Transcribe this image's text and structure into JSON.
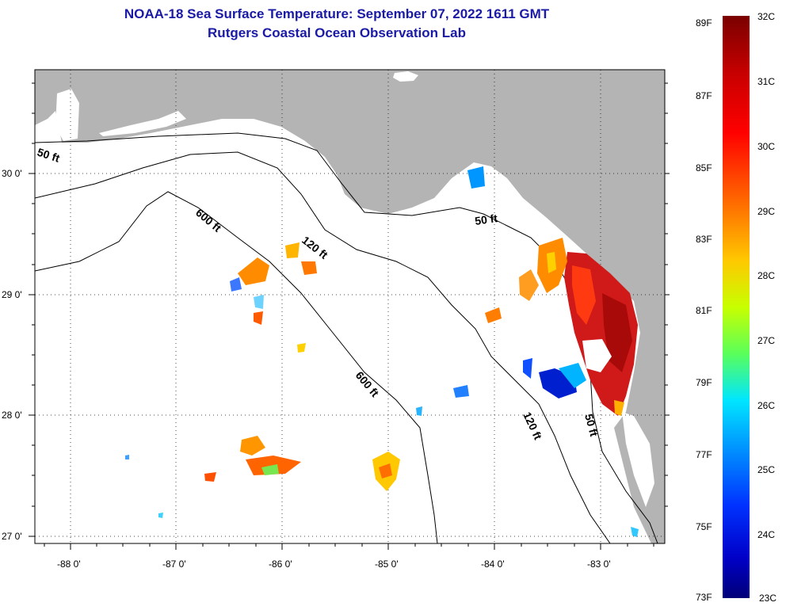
{
  "header": {
    "title": "NOAA-18 Sea Surface Temperature:  September 07, 2022 1611 GMT",
    "subtitle": "Rutgers Coastal Ocean Observation Lab"
  },
  "map": {
    "lon_labels": [
      "-88 0'",
      "-87 0'",
      "-86 0'",
      "-85 0'",
      "-84 0'",
      "-83 0'"
    ],
    "lat_labels": [
      "30 0'",
      "29 0'",
      "28 0'",
      "27 0'"
    ],
    "contour_labels": [
      "50 ft",
      "600 ft",
      "120 ft",
      "50 ft",
      "600 ft",
      "120 ft",
      "50 ft"
    ],
    "colors": {
      "land": "#b4b4b4",
      "water": "#ffffff"
    }
  },
  "legend": {
    "fahrenheit": [
      "89F",
      "87F",
      "85F",
      "83F",
      "81F",
      "79F",
      "77F",
      "75F",
      "73F"
    ],
    "celsius": [
      "32C",
      "31C",
      "30C",
      "29C",
      "28C",
      "27C",
      "26C",
      "25C",
      "24C",
      "23C"
    ]
  }
}
